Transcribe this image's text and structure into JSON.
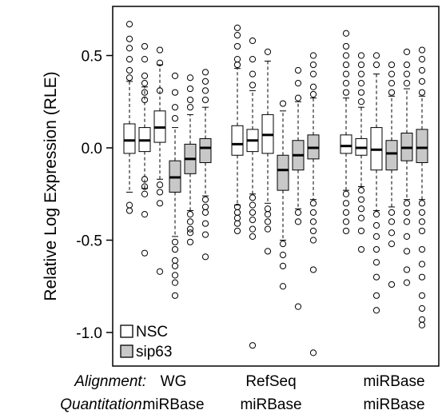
{
  "chart_data": {
    "type": "boxplot",
    "ylabel": "Relative Log Expression (RLE)",
    "ylim": [
      -1.15,
      0.72
    ],
    "yticks": [
      0.5,
      0.0,
      -0.5,
      -1.0
    ],
    "ytick_labels": [
      "0.5",
      "0.0",
      "-0.5",
      "-1.0"
    ],
    "legend": {
      "position": "bottom-left",
      "entries": [
        {
          "name": "NSC",
          "color": "#ffffff"
        },
        {
          "name": "sip63",
          "color": "#c8c8c8"
        }
      ]
    },
    "row_labels": {
      "alignment": "Alignment:",
      "quantitation": "Quantitation:"
    },
    "groups": [
      {
        "alignment": "WG",
        "quantitation": "miRBase",
        "boxes": [
          {
            "series": "NSC",
            "q1": -0.03,
            "median": 0.04,
            "q3": 0.13,
            "whisker_low": -0.24,
            "whisker_high": 0.36,
            "outliers": [
              0.67,
              0.59,
              0.54,
              0.48,
              0.42,
              0.38,
              -0.31,
              -0.34
            ]
          },
          {
            "series": "NSC",
            "q1": -0.02,
            "median": 0.04,
            "q3": 0.11,
            "whisker_low": -0.22,
            "whisker_high": 0.33,
            "outliers": [
              0.55,
              0.48,
              0.39,
              0.35,
              0.3,
              0.26,
              -0.17,
              -0.21,
              -0.25,
              -0.36,
              -0.57
            ]
          },
          {
            "series": "NSC",
            "q1": 0.03,
            "median": 0.11,
            "q3": 0.2,
            "whisker_low": -0.17,
            "whisker_high": 0.45,
            "outliers": [
              0.53,
              0.46,
              0.31,
              -0.2,
              -0.24,
              -0.3,
              -0.67
            ]
          },
          {
            "series": "sip63",
            "q1": -0.24,
            "median": -0.16,
            "q3": -0.07,
            "whisker_low": -0.48,
            "whisker_high": 0.11,
            "outliers": [
              0.39,
              0.3,
              0.22,
              0.16,
              -0.51,
              -0.55,
              -0.61,
              -0.64,
              -0.69,
              -0.73,
              -0.8
            ]
          },
          {
            "series": "sip63",
            "q1": -0.14,
            "median": -0.06,
            "q3": 0.02,
            "whisker_low": -0.34,
            "whisker_high": 0.18,
            "outliers": [
              0.38,
              0.32,
              0.26,
              0.22,
              -0.36,
              -0.4,
              -0.44,
              -0.46,
              -0.51
            ]
          },
          {
            "series": "sip63",
            "q1": -0.08,
            "median": 0.0,
            "q3": 0.05,
            "whisker_low": -0.26,
            "whisker_high": 0.22,
            "outliers": [
              0.41,
              0.36,
              0.31,
              0.26,
              -0.28,
              -0.32,
              -0.35,
              -0.41,
              -0.47,
              -0.59
            ]
          }
        ]
      },
      {
        "alignment": "RefSeq",
        "quantitation": "miRBase",
        "boxes": [
          {
            "series": "NSC",
            "q1": -0.04,
            "median": 0.02,
            "q3": 0.12,
            "whisker_low": -0.31,
            "whisker_high": 0.43,
            "outliers": [
              0.65,
              0.61,
              0.55,
              0.48,
              0.45,
              -0.32,
              -0.35,
              -0.38,
              -0.41,
              -0.45
            ]
          },
          {
            "series": "NSC",
            "q1": -0.02,
            "median": 0.04,
            "q3": 0.1,
            "whisker_low": -0.25,
            "whisker_high": 0.31,
            "outliers": [
              0.58,
              0.48,
              0.4,
              0.34,
              -0.27,
              -0.31,
              -0.35,
              -0.39,
              -0.44,
              -0.48,
              -1.07
            ]
          },
          {
            "series": "NSC",
            "q1": -0.03,
            "median": 0.07,
            "q3": 0.18,
            "whisker_low": -0.3,
            "whisker_high": 0.47,
            "outliers": [
              0.52,
              -0.33,
              -0.36,
              -0.4,
              -0.44,
              -0.56
            ]
          },
          {
            "series": "sip63",
            "q1": -0.23,
            "median": -0.12,
            "q3": -0.04,
            "whisker_low": -0.5,
            "whisker_high": 0.2,
            "outliers": [
              0.24,
              -0.52,
              -0.58,
              -0.64,
              -0.75
            ]
          },
          {
            "series": "sip63",
            "q1": -0.12,
            "median": -0.04,
            "q3": 0.04,
            "whisker_low": -0.33,
            "whisker_high": 0.25,
            "outliers": [
              0.42,
              0.35,
              0.27,
              -0.35,
              -0.4,
              -0.86
            ]
          },
          {
            "series": "sip63",
            "q1": -0.06,
            "median": 0.0,
            "q3": 0.07,
            "whisker_low": -0.28,
            "whisker_high": 0.27,
            "outliers": [
              0.5,
              0.45,
              0.4,
              0.33,
              0.29,
              -0.3,
              -0.35,
              -0.4,
              -0.45,
              -0.5,
              -0.66,
              -1.11
            ]
          }
        ]
      },
      {
        "alignment": "miRBase",
        "quantitation": "miRBase",
        "boxes": [
          {
            "series": "NSC",
            "q1": -0.03,
            "median": 0.01,
            "q3": 0.07,
            "whisker_low": -0.23,
            "whisker_high": 0.27,
            "outliers": [
              0.62,
              0.55,
              0.5,
              0.45,
              0.4,
              0.35,
              0.3,
              -0.25,
              -0.3,
              -0.35,
              -0.4,
              -0.45
            ]
          },
          {
            "series": "NSC",
            "q1": -0.04,
            "median": 0.0,
            "q3": 0.05,
            "whisker_low": -0.21,
            "whisker_high": 0.22,
            "outliers": [
              0.5,
              0.45,
              0.4,
              0.35,
              0.3,
              0.25,
              -0.23,
              -0.28,
              -0.33,
              -0.38,
              -0.45,
              -0.55
            ]
          },
          {
            "series": "NSC",
            "q1": -0.12,
            "median": -0.01,
            "q3": 0.11,
            "whisker_low": -0.34,
            "whisker_high": 0.4,
            "outliers": [
              0.5,
              0.45,
              -0.36,
              -0.42,
              -0.48,
              -0.55,
              -0.62,
              -0.7,
              -0.8,
              -0.88
            ]
          },
          {
            "series": "sip63",
            "q1": -0.12,
            "median": -0.03,
            "q3": 0.04,
            "whisker_low": -0.32,
            "whisker_high": 0.28,
            "outliers": [
              0.45,
              0.4,
              0.35,
              0.3,
              -0.35,
              -0.4,
              -0.46,
              -0.52,
              -0.74
            ]
          },
          {
            "series": "sip63",
            "q1": -0.07,
            "median": 0.0,
            "q3": 0.08,
            "whisker_low": -0.28,
            "whisker_high": 0.32,
            "outliers": [
              0.52,
              0.45,
              0.4,
              0.35,
              -0.3,
              -0.35,
              -0.4,
              -0.48,
              -0.56,
              -0.66,
              -0.73
            ]
          },
          {
            "series": "sip63",
            "q1": -0.08,
            "median": 0.0,
            "q3": 0.1,
            "whisker_low": -0.28,
            "whisker_high": 0.28,
            "outliers": [
              0.53,
              0.48,
              0.42,
              0.36,
              0.3,
              -0.3,
              -0.35,
              -0.4,
              -0.45,
              -0.55,
              -0.63,
              -0.7,
              -0.8,
              -0.87,
              -0.93,
              -0.96
            ]
          }
        ]
      }
    ]
  }
}
